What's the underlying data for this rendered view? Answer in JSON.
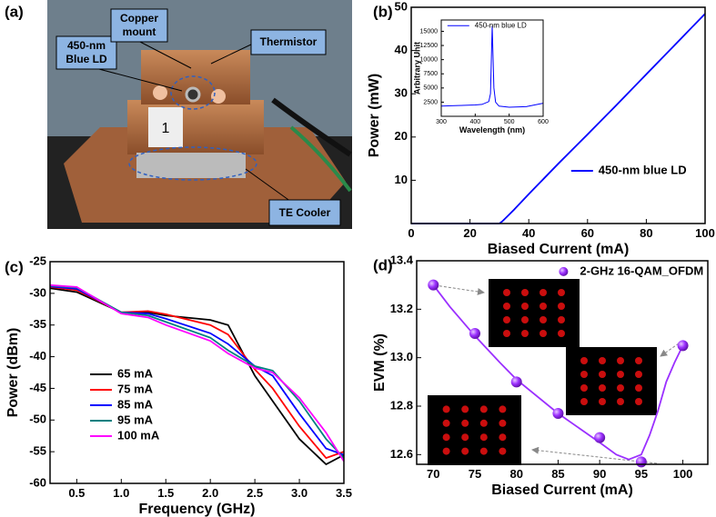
{
  "photo": {
    "panel_label": "(a)",
    "labels": [
      [
        "450-nm",
        "Blue LD"
      ],
      [
        "Copper",
        "mount"
      ],
      [
        "Thermistor"
      ],
      [
        "TE Cooler"
      ]
    ],
    "tag": "1"
  },
  "chart_data": [
    {
      "type": "line",
      "panel_label": "(b)",
      "xlabel": "Biased Current (mA)",
      "ylabel": "Power (mW)",
      "x": [
        0,
        30,
        31,
        35,
        40,
        50,
        60,
        70,
        80,
        90,
        100
      ],
      "series": [
        {
          "name": "450-nm blue LD",
          "color": "#0000ff",
          "values": [
            0,
            0,
            0.5,
            3.2,
            6.8,
            13.8,
            20.6,
            27.5,
            34.5,
            41.5,
            48.5
          ]
        }
      ],
      "xlim": [
        0,
        100
      ],
      "xticks": [
        0,
        20,
        40,
        60,
        80,
        100
      ],
      "ylim": [
        0,
        50
      ],
      "yticks": [
        10,
        20,
        30,
        40,
        50
      ],
      "legend": "lower right"
    },
    {
      "type": "line",
      "xlabel": "Wavelength (nm)",
      "ylabel": "Arbitrary Unit",
      "x": [
        300,
        350,
        400,
        420,
        440,
        445,
        450,
        455,
        460,
        470,
        500,
        550,
        600
      ],
      "series": [
        {
          "name": "450-nm blue LD",
          "color": "#0000ff",
          "values": [
            1800,
            1900,
            2000,
            2100,
            2600,
            4000,
            16000,
            5000,
            2500,
            1800,
            1600,
            1700,
            2300
          ]
        }
      ],
      "xlim": [
        300,
        600
      ],
      "xticks": [
        300,
        400,
        500,
        600
      ],
      "ylim": [
        0,
        17000
      ],
      "yticks": [
        2500,
        5000,
        7500,
        10000,
        12500,
        15000
      ],
      "legend": "upper right"
    },
    {
      "type": "line",
      "panel_label": "(c)",
      "xlabel": "Frequency (GHz)",
      "ylabel": "Power (dBm)",
      "x": [
        0.2,
        0.5,
        1.0,
        1.3,
        1.5,
        2.0,
        2.2,
        2.5,
        2.7,
        3.0,
        3.3,
        3.5
      ],
      "series": [
        {
          "name": "65 mA",
          "color": "#000000",
          "values": [
            -29.2,
            -29.8,
            -33,
            -33,
            -33.5,
            -34.2,
            -35,
            -43,
            -47,
            -53,
            -57,
            -55.5
          ]
        },
        {
          "name": "75 mA",
          "color": "#ff0000",
          "values": [
            -29,
            -29.5,
            -33,
            -32.8,
            -33.3,
            -35,
            -36.5,
            -42,
            -45,
            -51,
            -56,
            -55
          ]
        },
        {
          "name": "85 mA",
          "color": "#0000ff",
          "values": [
            -28.9,
            -29.3,
            -33,
            -33.2,
            -34,
            -36.3,
            -38,
            -41.5,
            -43,
            -49,
            -54.5,
            -55.5
          ]
        },
        {
          "name": "95 mA",
          "color": "#008080",
          "values": [
            -28.8,
            -29.1,
            -33,
            -33.5,
            -34.5,
            -37,
            -39,
            -41.5,
            -42.2,
            -47,
            -53,
            -56
          ]
        },
        {
          "name": "100 mA",
          "color": "#ff00ff",
          "values": [
            -28.7,
            -29,
            -33.2,
            -33.8,
            -35,
            -37.5,
            -39.5,
            -41.8,
            -42.5,
            -46.5,
            -52,
            -56.5
          ]
        }
      ],
      "xlim": [
        0.2,
        3.5
      ],
      "xticks": [
        0.5,
        {
          "value": 1.0,
          "label": "1.0"
        },
        1.5,
        {
          "value": 2.0,
          "label": "2.0"
        },
        2.5,
        {
          "value": 3.0,
          "label": "3.0"
        },
        3.5
      ],
      "ylim": [
        -60,
        -25
      ],
      "yticks": [
        -60,
        -55,
        -50,
        -45,
        -40,
        -35,
        -30,
        -25
      ],
      "legend": "lower left"
    },
    {
      "type": "scatter",
      "panel_label": "(d)",
      "xlabel": "Biased Current (mA)",
      "ylabel": "EVM (%)",
      "x": [
        70,
        75,
        80,
        85,
        90,
        95,
        100
      ],
      "series": [
        {
          "name": "2-GHz 16-QAM_OFDM",
          "color": "#9b30ff",
          "values": [
            13.3,
            13.1,
            12.9,
            12.77,
            12.67,
            12.57,
            13.05
          ]
        }
      ],
      "fit": {
        "color": "#9b30ff",
        "x": [
          70,
          72,
          75,
          78,
          80,
          85,
          90,
          92,
          93.5,
          95,
          96,
          97,
          98,
          99,
          100
        ],
        "values": [
          13.3,
          13.21,
          13.09,
          12.98,
          12.91,
          12.77,
          12.65,
          12.6,
          12.58,
          12.6,
          12.68,
          12.78,
          12.9,
          12.98,
          13.05
        ]
      },
      "xlim": [
        68,
        103
      ],
      "xticks": [
        70,
        75,
        80,
        85,
        90,
        95,
        100
      ],
      "ylim": [
        12.56,
        13.4
      ],
      "yticks": [
        12.6,
        12.8,
        {
          "value": 13.0,
          "label": "13.0"
        },
        13.2,
        13.4
      ],
      "legend": "upper right"
    }
  ]
}
